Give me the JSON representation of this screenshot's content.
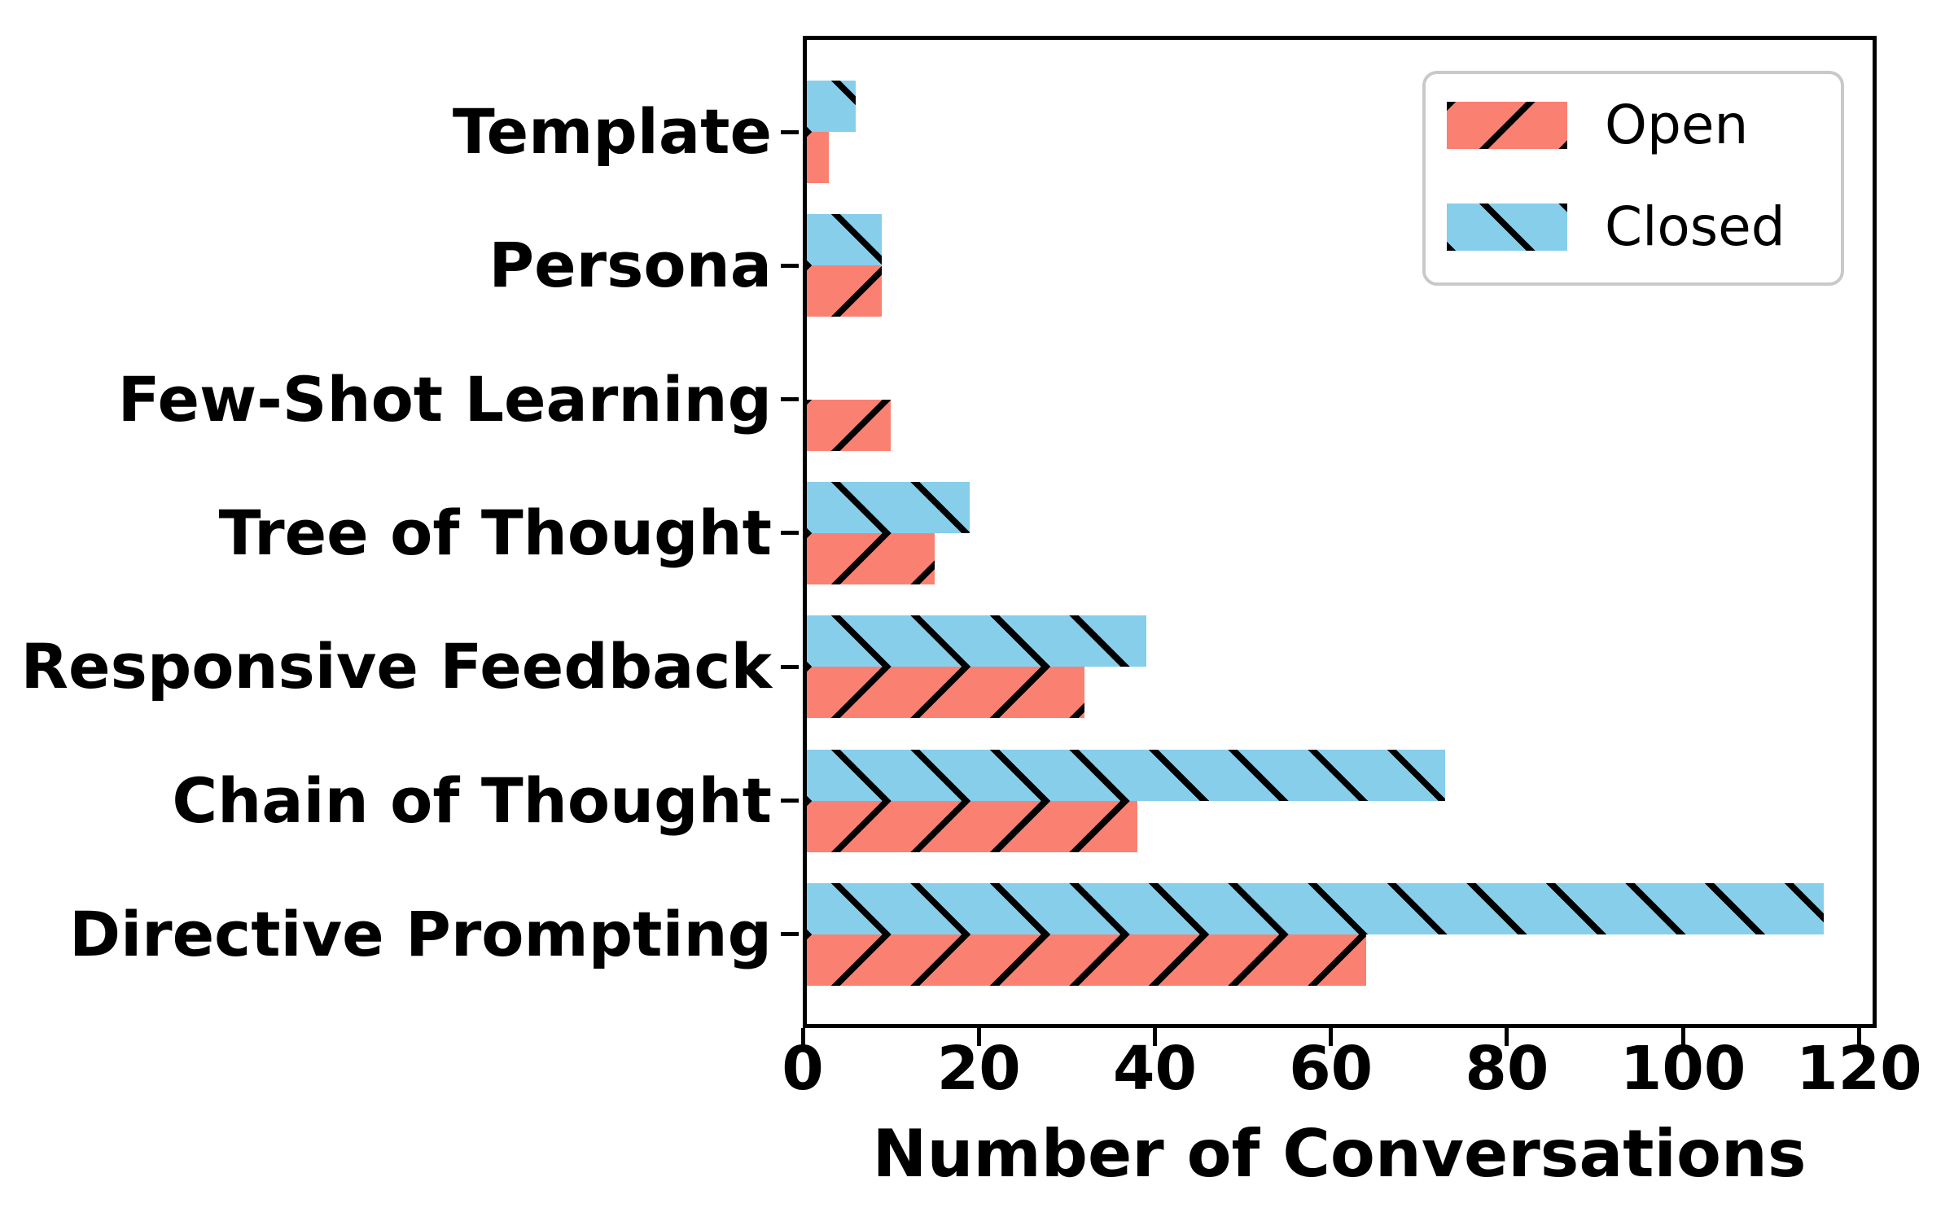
{
  "chart_data": {
    "type": "bar",
    "orientation": "horizontal",
    "title": "",
    "xlabel": "Number of Conversations",
    "ylabel": "",
    "categories_top_to_bottom": [
      "Template",
      "Persona",
      "Few-Shot Learning",
      "Tree of Thought",
      "Responsive Feedback",
      "Chain of Thought",
      "Directive Prompting"
    ],
    "series": [
      {
        "name": "Open",
        "color": "#FA8072",
        "hatch": "/",
        "values": [
          3,
          9,
          10,
          15,
          32,
          38,
          64
        ]
      },
      {
        "name": "Closed",
        "color": "#87CEEB",
        "hatch": "\\",
        "values": [
          6,
          9,
          0,
          19,
          39,
          73,
          116
        ]
      }
    ],
    "x_ticks": [
      0,
      20,
      40,
      60,
      80,
      100,
      120
    ],
    "xlim": [
      0,
      122
    ],
    "grid": false,
    "legend_position": "upper right",
    "hatch_color": "#000000",
    "axis_color": "#000000",
    "legend_border_color": "#c9c9c9"
  }
}
